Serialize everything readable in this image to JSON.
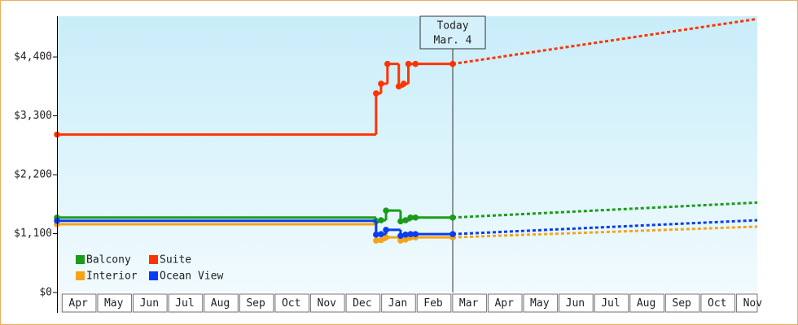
{
  "chart_data": {
    "type": "step-line",
    "annotation": {
      "title": "Today",
      "date": "Mar. 4",
      "x": 10.55
    },
    "xlim": [
      -0.6,
      19.13
    ],
    "xticks": [
      {
        "value": 0,
        "label": "Apr"
      },
      {
        "value": 1,
        "label": "May"
      },
      {
        "value": 2,
        "label": "Jun"
      },
      {
        "value": 3,
        "label": "Jul"
      },
      {
        "value": 4,
        "label": "Aug"
      },
      {
        "value": 5,
        "label": "Sep"
      },
      {
        "value": 6,
        "label": "Oct"
      },
      {
        "value": 7,
        "label": "Nov"
      },
      {
        "value": 8,
        "label": "Dec"
      },
      {
        "value": 9,
        "label": "Jan"
      },
      {
        "value": 10,
        "label": "Feb"
      },
      {
        "value": 11,
        "label": "Mar"
      },
      {
        "value": 12,
        "label": "Apr"
      },
      {
        "value": 13,
        "label": "May"
      },
      {
        "value": 14,
        "label": "Jun"
      },
      {
        "value": 15,
        "label": "Jul"
      },
      {
        "value": 16,
        "label": "Aug"
      },
      {
        "value": 17,
        "label": "Sep"
      },
      {
        "value": 18,
        "label": "Oct"
      },
      {
        "value": 19,
        "label": "Nov"
      }
    ],
    "ylim": [
      0,
      5160
    ],
    "yticks": [
      {
        "value": 0,
        "label": "$0"
      },
      {
        "value": 1100,
        "label": "$1,100"
      },
      {
        "value": 2200,
        "label": "$2,200"
      },
      {
        "value": 3300,
        "label": "$3,300"
      },
      {
        "value": 4400,
        "label": "$4,400"
      }
    ],
    "series": [
      {
        "name": "Balcony",
        "color": "#1a9c1a",
        "x": [
          -0.6,
          8.39,
          8.53,
          8.67,
          9.08,
          9.22,
          9.36,
          9.5,
          10.55
        ],
        "values": [
          1400,
          1330,
          1350,
          1530,
          1330,
          1350,
          1400,
          1400,
          1400
        ],
        "forecast_x": [
          10.55,
          19.13
        ],
        "forecast_values": [
          1400,
          1680
        ]
      },
      {
        "name": "Suite",
        "color": "#ff3300",
        "x": [
          -0.6,
          8.39,
          8.53,
          8.71,
          9.03,
          9.17,
          9.3,
          9.5,
          10.55
        ],
        "values": [
          2950,
          3720,
          3900,
          4270,
          3850,
          3900,
          4270,
          4270,
          4270
        ],
        "forecast_x": [
          10.55,
          19.13
        ],
        "forecast_values": [
          4270,
          5110
        ]
      },
      {
        "name": "Interior",
        "color": "#f5a31a",
        "x": [
          -0.6,
          8.39,
          8.53,
          8.67,
          9.08,
          9.22,
          9.36,
          9.5,
          10.55
        ],
        "values": [
          1275,
          970,
          980,
          1030,
          970,
          990,
          1030,
          1030,
          1030
        ],
        "forecast_x": [
          10.55,
          19.13
        ],
        "forecast_values": [
          1030,
          1230
        ]
      },
      {
        "name": "Ocean View",
        "color": "#0a3cf0",
        "x": [
          -0.6,
          8.39,
          8.53,
          8.67,
          9.08,
          9.22,
          9.36,
          9.5,
          10.55
        ],
        "values": [
          1340,
          1080,
          1090,
          1170,
          1060,
          1080,
          1090,
          1090,
          1090
        ],
        "forecast_x": [
          10.55,
          19.13
        ],
        "forecast_values": [
          1090,
          1350
        ]
      }
    ]
  }
}
